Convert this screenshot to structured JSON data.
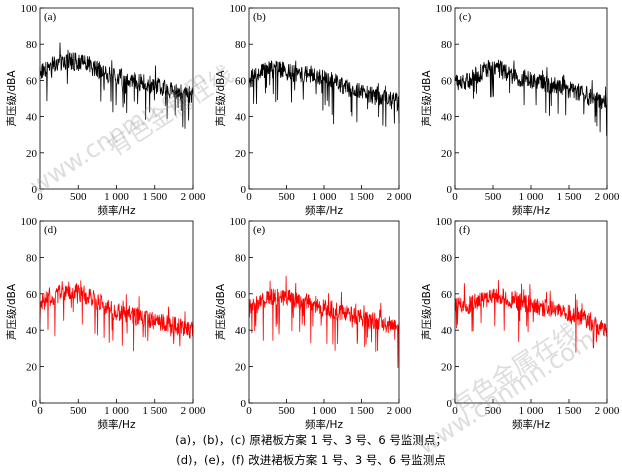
{
  "chart_data": [
    {
      "type": "line",
      "panel_label": "(a)",
      "xlabel": "频率/Hz",
      "ylabel": "声压级/dBA",
      "xlim": [
        0,
        2000
      ],
      "ylim": [
        0,
        100
      ],
      "xticks": [
        0,
        500,
        1000,
        1500,
        2000
      ],
      "xtick_labels": [
        "0",
        "500",
        "1 000",
        "1 500",
        "2 000"
      ],
      "yticks": [
        0,
        20,
        40,
        60,
        80,
        100
      ],
      "ytick_labels": [
        "0",
        "20",
        "40",
        "60",
        "80",
        "100"
      ],
      "color": "#000000",
      "series": [
        {
          "x": [
            0,
            100,
            200,
            300,
            400,
            500,
            600,
            700,
            800,
            900,
            1000,
            1100,
            1200,
            1300,
            1400,
            1500,
            1600,
            1700,
            1800,
            1900,
            2000
          ],
          "values": [
            65,
            67,
            69,
            70,
            71,
            70,
            69,
            67,
            65,
            63,
            62,
            61,
            60,
            59,
            58,
            57,
            56,
            55,
            54,
            53,
            52
          ]
        }
      ]
    },
    {
      "type": "line",
      "panel_label": "(b)",
      "xlabel": "频率/Hz",
      "ylabel": "声压级/dBA",
      "xlim": [
        0,
        2000
      ],
      "ylim": [
        0,
        100
      ],
      "xticks": [
        0,
        500,
        1000,
        1500,
        2000
      ],
      "xtick_labels": [
        "0",
        "500",
        "1 000",
        "1 500",
        "2 000"
      ],
      "yticks": [
        0,
        20,
        40,
        60,
        80,
        100
      ],
      "ytick_labels": [
        "0",
        "20",
        "40",
        "60",
        "80",
        "100"
      ],
      "color": "#000000",
      "series": [
        {
          "x": [
            0,
            100,
            200,
            300,
            400,
            500,
            600,
            700,
            800,
            900,
            1000,
            1100,
            1200,
            1300,
            1400,
            1500,
            1600,
            1700,
            1800,
            1900,
            2000
          ],
          "values": [
            60,
            63,
            65,
            66,
            66,
            65,
            64,
            63,
            63,
            62,
            61,
            60,
            58,
            56,
            55,
            54,
            52,
            51,
            50,
            49,
            48
          ]
        }
      ]
    },
    {
      "type": "line",
      "panel_label": "(c)",
      "xlabel": "频率/Hz",
      "ylabel": "声压级/dBA",
      "xlim": [
        0,
        2000
      ],
      "ylim": [
        0,
        100
      ],
      "xticks": [
        0,
        500,
        1000,
        1500,
        2000
      ],
      "xtick_labels": [
        "0",
        "500",
        "1 000",
        "1 500",
        "2 000"
      ],
      "yticks": [
        0,
        20,
        40,
        60,
        80,
        100
      ],
      "ytick_labels": [
        "0",
        "20",
        "40",
        "60",
        "80",
        "100"
      ],
      "color": "#000000",
      "series": [
        {
          "x": [
            0,
            100,
            200,
            300,
            400,
            500,
            600,
            700,
            800,
            900,
            1000,
            1100,
            1200,
            1300,
            1400,
            1500,
            1600,
            1700,
            1800,
            1900,
            2000
          ],
          "values": [
            60,
            58,
            60,
            63,
            66,
            67,
            66,
            64,
            62,
            61,
            60,
            59,
            58,
            57,
            56,
            55,
            54,
            52,
            50,
            49,
            47
          ]
        }
      ]
    },
    {
      "type": "line",
      "panel_label": "(d)",
      "xlabel": "频率/Hz",
      "ylabel": "声压级/dBA",
      "xlim": [
        0,
        2000
      ],
      "ylim": [
        0,
        100
      ],
      "xticks": [
        0,
        500,
        1000,
        1500,
        2000
      ],
      "xtick_labels": [
        "0",
        "500",
        "1 000",
        "1 500",
        "2 000"
      ],
      "yticks": [
        0,
        20,
        40,
        60,
        80,
        100
      ],
      "ytick_labels": [
        "0",
        "20",
        "40",
        "60",
        "80",
        "100"
      ],
      "color": "#ff0000",
      "series": [
        {
          "x": [
            0,
            100,
            200,
            300,
            400,
            500,
            600,
            700,
            800,
            900,
            1000,
            1100,
            1200,
            1300,
            1400,
            1500,
            1600,
            1700,
            1800,
            1900,
            2000
          ],
          "values": [
            55,
            57,
            59,
            61,
            62,
            61,
            59,
            57,
            55,
            52,
            50,
            49,
            48,
            47,
            46,
            45,
            44,
            43,
            42,
            41,
            40
          ]
        }
      ]
    },
    {
      "type": "line",
      "panel_label": "(e)",
      "xlabel": "频率/Hz",
      "ylabel": "声压级/dBA",
      "xlim": [
        0,
        2000
      ],
      "ylim": [
        0,
        100
      ],
      "xticks": [
        0,
        500,
        1000,
        1500,
        2000
      ],
      "xtick_labels": [
        "0",
        "500",
        "1 000",
        "1 500",
        "2 000"
      ],
      "yticks": [
        0,
        20,
        40,
        60,
        80,
        100
      ],
      "ytick_labels": [
        "0",
        "20",
        "40",
        "60",
        "80",
        "100"
      ],
      "color": "#ff0000",
      "series": [
        {
          "x": [
            0,
            100,
            200,
            300,
            400,
            500,
            600,
            700,
            800,
            900,
            1000,
            1100,
            1200,
            1300,
            1400,
            1500,
            1600,
            1700,
            1800,
            1900,
            2000
          ],
          "values": [
            52,
            54,
            56,
            58,
            58,
            58,
            57,
            56,
            55,
            54,
            52,
            51,
            50,
            49,
            48,
            47,
            46,
            45,
            44,
            43,
            42
          ]
        }
      ]
    },
    {
      "type": "line",
      "panel_label": "(f)",
      "xlabel": "频率/Hz",
      "ylabel": "声压级/dBA",
      "xlim": [
        0,
        2000
      ],
      "ylim": [
        0,
        100
      ],
      "xticks": [
        0,
        500,
        1000,
        1500,
        2000
      ],
      "xtick_labels": [
        "0",
        "500",
        "1 000",
        "1 500",
        "2 000"
      ],
      "yticks": [
        0,
        20,
        40,
        60,
        80,
        100
      ],
      "ytick_labels": [
        "0",
        "20",
        "40",
        "60",
        "80",
        "100"
      ],
      "color": "#ff0000",
      "series": [
        {
          "x": [
            0,
            100,
            200,
            300,
            400,
            500,
            600,
            700,
            800,
            900,
            1000,
            1100,
            1200,
            1300,
            1400,
            1500,
            1600,
            1700,
            1800,
            1900,
            2000
          ],
          "values": [
            54,
            53,
            54,
            56,
            57,
            58,
            58,
            57,
            56,
            55,
            54,
            53,
            52,
            51,
            50,
            49,
            48,
            46,
            44,
            42,
            40
          ]
        }
      ]
    }
  ],
  "caption": {
    "line1": "(a)，(b)，(c)  原裙板方案 1 号、3 号、6 号监测点；",
    "line2": "(d)，(e)，(f)  改进裙板方案 1 号、3 号、6 号监测点"
  },
  "watermarks": [
    {
      "text": "有色金属在线"
    },
    {
      "text": "www.cnnmn.com"
    },
    {
      "text": "有色金属在线"
    },
    {
      "text": "www.cnnmn.com"
    }
  ]
}
